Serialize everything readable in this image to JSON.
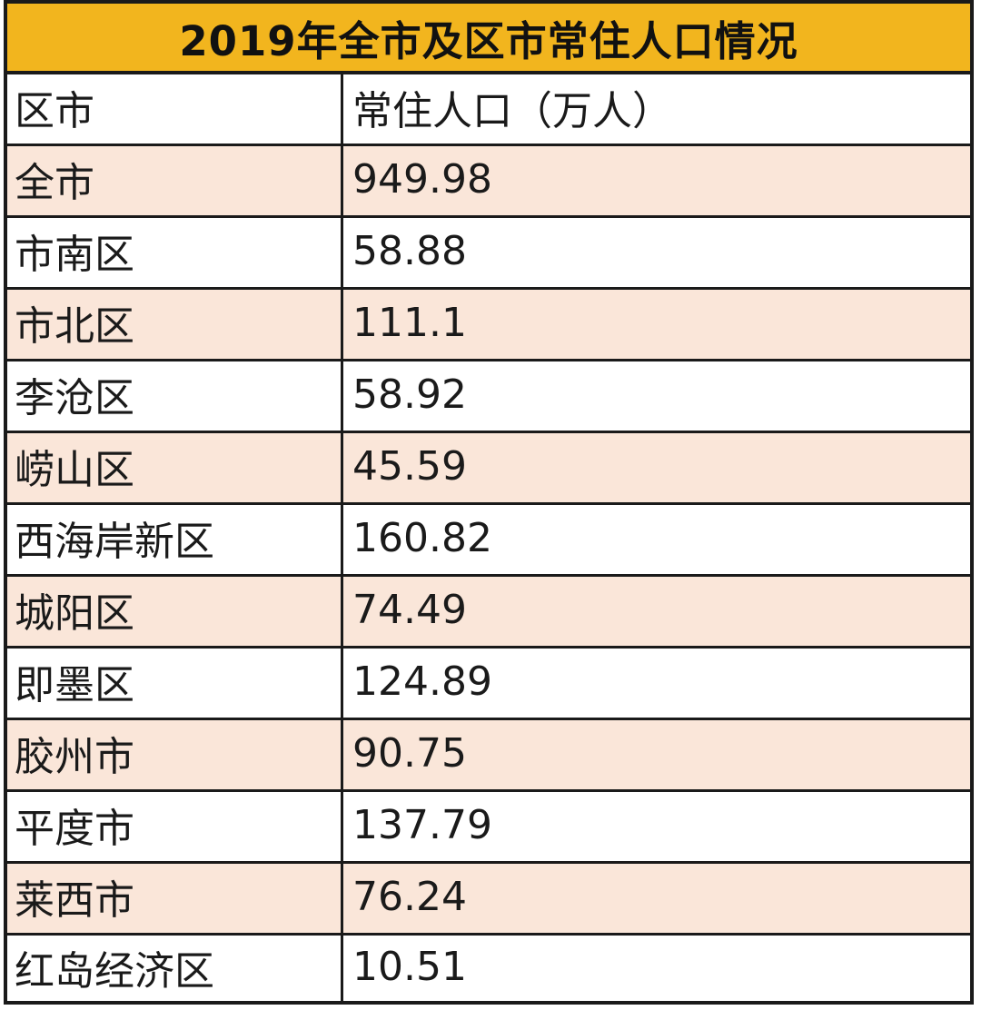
{
  "title": "2019年全市及区市常住人口情况",
  "header": {
    "col1": "区市",
    "col2": "常住人口（万人）"
  },
  "rows": [
    {
      "name": "全市",
      "value": "949.98"
    },
    {
      "name": "市南区",
      "value": "58.88"
    },
    {
      "name": "市北区",
      "value": "111.1"
    },
    {
      "name": "李沧区",
      "value": "58.92"
    },
    {
      "name": "崂山区",
      "value": "45.59"
    },
    {
      "name": "西海岸新区",
      "value": "160.82"
    },
    {
      "name": "城阳区",
      "value": "74.49"
    },
    {
      "name": "即墨区",
      "value": "124.89"
    },
    {
      "name": "胶州市",
      "value": "90.75"
    },
    {
      "name": "平度市",
      "value": "137.79"
    },
    {
      "name": "莱西市",
      "value": "76.24"
    },
    {
      "name": "红岛经济区",
      "value": "10.51"
    }
  ],
  "colors": {
    "title_bg": "#f2b51e",
    "alt_row_bg": "#fae6d9",
    "border": "#1a1a1a"
  }
}
